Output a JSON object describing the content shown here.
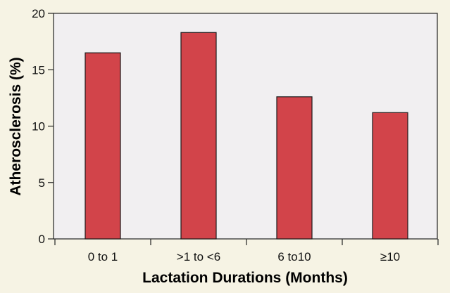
{
  "chart_data": {
    "type": "bar",
    "categories": [
      "0 to 1",
      ">1 to <6",
      "6 to10",
      "≥10"
    ],
    "values": [
      16.5,
      18.3,
      12.6,
      11.2
    ],
    "xlabel": "Lactation Durations (Months)",
    "ylabel": "Atherosclerosis (%)",
    "ylim": [
      0,
      20
    ],
    "yticks": [
      0,
      5,
      10,
      15,
      20
    ],
    "grid": false,
    "legend": "none",
    "colors": {
      "bar_fill": "#d2444a",
      "bar_stroke": "#1a1a1a",
      "plot_background": "#f1eff1",
      "page_background": "#f6f3e4"
    }
  }
}
